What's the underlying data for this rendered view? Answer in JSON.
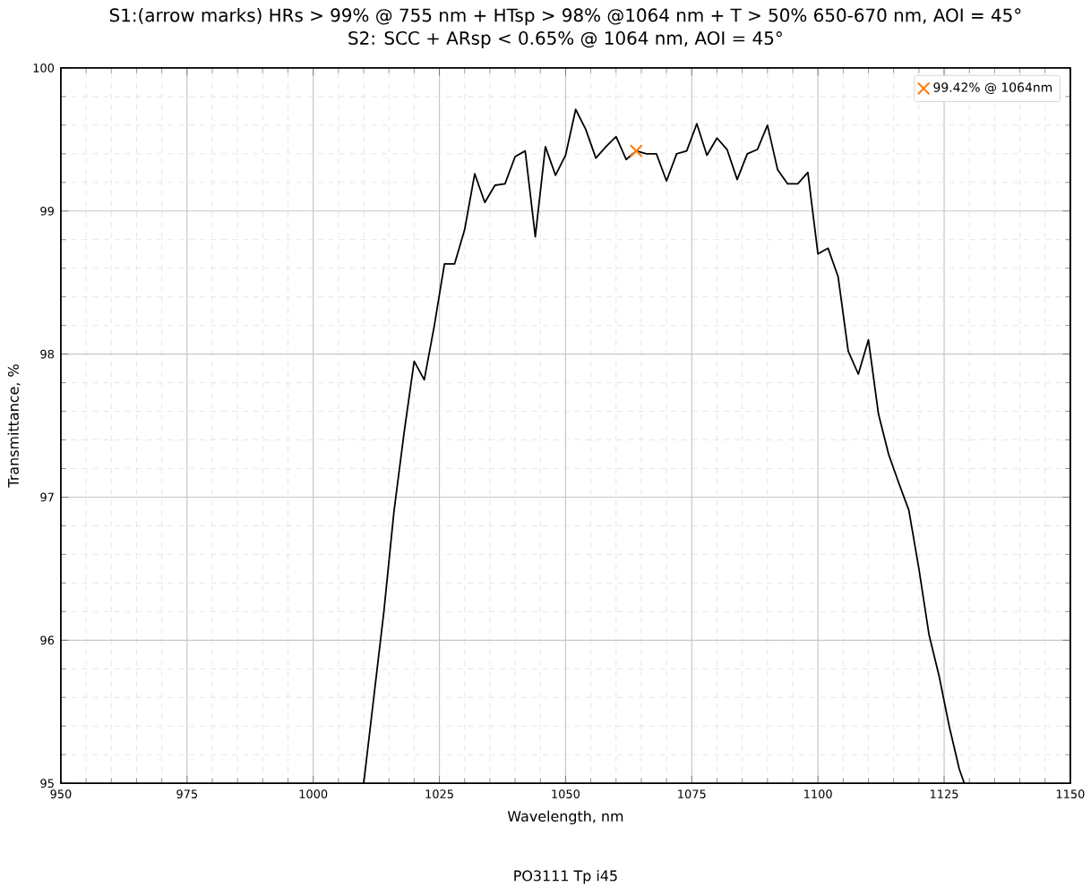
{
  "chart_data": {
    "type": "line",
    "title": "S1:(arrow marks) HRs > 99% @ 755 nm + HTsp > 98% @1064 nm + T > 50% 650-670 nm, AOI = 45°",
    "subtitle": "S2: SCC + ARsp < 0.65% @ 1064 nm, AOI = 45°",
    "xlabel": "Wavelength, nm",
    "ylabel": "Transmittance, %",
    "annotations": [
      "PO3111 Tp i45"
    ],
    "xlim": [
      950,
      1150
    ],
    "xticks": [
      950,
      975,
      1000,
      1025,
      1050,
      1075,
      1100,
      1125,
      1150
    ],
    "ylim": [
      95,
      100
    ],
    "yticks": [
      95,
      96,
      97,
      98,
      99,
      100
    ],
    "grid": true,
    "legend": "top right",
    "series": [
      {
        "color": "#000000",
        "marker": "none",
        "line_style": "solid",
        "x": [
          1010,
          1012,
          1014,
          1016,
          1018,
          1020,
          1022,
          1024,
          1026,
          1028,
          1030,
          1032,
          1034,
          1036,
          1038,
          1040,
          1042,
          1044,
          1046,
          1048,
          1050,
          1052,
          1054,
          1056,
          1058,
          1060,
          1062,
          1064,
          1066,
          1068,
          1070,
          1072,
          1074,
          1076,
          1078,
          1080,
          1082,
          1084,
          1086,
          1088,
          1090,
          1092,
          1094,
          1096,
          1098,
          1100,
          1102,
          1104,
          1106,
          1108,
          1110,
          1112,
          1114,
          1116,
          1118,
          1120,
          1122,
          1124,
          1126,
          1128,
          1129
        ],
        "values": [
          95.0,
          95.6,
          96.2,
          96.9,
          97.45,
          97.95,
          97.82,
          98.2,
          98.63,
          98.63,
          98.87,
          99.26,
          99.06,
          99.18,
          99.19,
          99.38,
          99.42,
          98.82,
          99.45,
          99.25,
          99.39,
          99.71,
          99.57,
          99.37,
          99.45,
          99.52,
          99.36,
          99.42,
          99.4,
          99.4,
          99.21,
          99.4,
          99.42,
          99.61,
          99.39,
          99.51,
          99.43,
          99.22,
          99.4,
          99.43,
          99.6,
          99.29,
          99.19,
          99.19,
          99.27,
          98.7,
          98.74,
          98.54,
          98.02,
          97.86,
          98.1,
          97.58,
          97.3,
          97.1,
          96.91,
          96.5,
          96.04,
          95.75,
          95.4,
          95.1,
          95.0
        ]
      },
      {
        "type": "scatter",
        "name": "99.42% @ 1064nm",
        "color": "#ff7f0e",
        "marker": "cross",
        "x": [
          1064
        ],
        "values": [
          99.42
        ]
      }
    ]
  }
}
